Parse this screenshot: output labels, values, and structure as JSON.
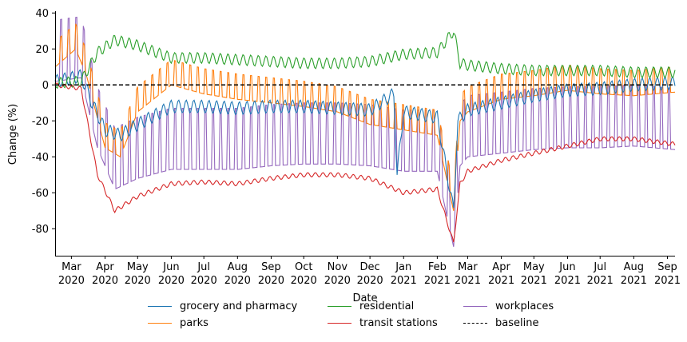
{
  "chart_data": {
    "type": "line",
    "title": "",
    "xlabel": "Date",
    "ylabel": "Change (%)",
    "ylim": [
      -95,
      41
    ],
    "yticks": [
      40,
      20,
      0,
      -20,
      -40,
      -60,
      -80
    ],
    "x_range": [
      "2020-02-15",
      "2021-09-08"
    ],
    "xticks": [
      {
        "month": "Mar",
        "year": "2020"
      },
      {
        "month": "Apr",
        "year": "2020"
      },
      {
        "month": "May",
        "year": "2020"
      },
      {
        "month": "Jun",
        "year": "2020"
      },
      {
        "month": "Jul",
        "year": "2020"
      },
      {
        "month": "Aug",
        "year": "2020"
      },
      {
        "month": "Sep",
        "year": "2020"
      },
      {
        "month": "Oct",
        "year": "2020"
      },
      {
        "month": "Nov",
        "year": "2020"
      },
      {
        "month": "Dec",
        "year": "2020"
      },
      {
        "month": "Jan",
        "year": "2021"
      },
      {
        "month": "Feb",
        "year": "2021"
      },
      {
        "month": "Mar",
        "year": "2021"
      },
      {
        "month": "Apr",
        "year": "2021"
      },
      {
        "month": "May",
        "year": "2021"
      },
      {
        "month": "Jun",
        "year": "2021"
      },
      {
        "month": "Jul",
        "year": "2021"
      },
      {
        "month": "Aug",
        "year": "2021"
      },
      {
        "month": "Sep",
        "year": "2021"
      }
    ],
    "xtick_dates": [
      "2020-03-01",
      "2020-04-01",
      "2020-05-01",
      "2020-06-01",
      "2020-07-01",
      "2020-08-01",
      "2020-09-01",
      "2020-10-01",
      "2020-11-01",
      "2020-12-01",
      "2021-01-01",
      "2021-02-01",
      "2021-03-01",
      "2021-04-01",
      "2021-05-01",
      "2021-06-01",
      "2021-07-01",
      "2021-08-01",
      "2021-09-01"
    ],
    "series": [
      {
        "name": "grocery and pharmacy",
        "color": "#1f77b4",
        "weekly_amplitude": 6,
        "points": [
          [
            "2020-02-15",
            2
          ],
          [
            "2020-03-10",
            5
          ],
          [
            "2020-03-20",
            -10
          ],
          [
            "2020-04-01",
            -25
          ],
          [
            "2020-04-15",
            -28
          ],
          [
            "2020-05-01",
            -22
          ],
          [
            "2020-06-01",
            -12
          ],
          [
            "2020-07-01",
            -12
          ],
          [
            "2020-08-01",
            -13
          ],
          [
            "2020-09-01",
            -12
          ],
          [
            "2020-10-01",
            -12
          ],
          [
            "2020-11-01",
            -13
          ],
          [
            "2020-12-01",
            -14
          ],
          [
            "2020-12-23",
            -5
          ],
          [
            "2020-12-26",
            -50
          ],
          [
            "2021-01-01",
            -15
          ],
          [
            "2021-02-01",
            -18
          ],
          [
            "2021-02-16",
            -70
          ],
          [
            "2021-02-20",
            -20
          ],
          [
            "2021-03-01",
            -14
          ],
          [
            "2021-04-01",
            -10
          ],
          [
            "2021-05-01",
            -6
          ],
          [
            "2021-06-01",
            -3
          ],
          [
            "2021-07-01",
            -2
          ],
          [
            "2021-08-01",
            0
          ],
          [
            "2021-09-08",
            1
          ]
        ]
      },
      {
        "name": "parks",
        "color": "#ff7f0e",
        "weekly_amplitude": 14,
        "points": [
          [
            "2020-02-15",
            10
          ],
          [
            "2020-03-05",
            20
          ],
          [
            "2020-03-15",
            5
          ],
          [
            "2020-04-01",
            -35
          ],
          [
            "2020-04-15",
            -40
          ],
          [
            "2020-05-01",
            -15
          ],
          [
            "2020-06-01",
            0
          ],
          [
            "2020-07-01",
            -5
          ],
          [
            "2020-08-01",
            -8
          ],
          [
            "2020-09-01",
            -10
          ],
          [
            "2020-10-01",
            -12
          ],
          [
            "2020-11-01",
            -15
          ],
          [
            "2020-12-01",
            -22
          ],
          [
            "2021-01-01",
            -25
          ],
          [
            "2021-02-01",
            -28
          ],
          [
            "2021-02-16",
            -70
          ],
          [
            "2021-02-22",
            -20
          ],
          [
            "2021-03-01",
            -15
          ],
          [
            "2021-04-01",
            -8
          ],
          [
            "2021-05-01",
            -6
          ],
          [
            "2021-06-01",
            -3
          ],
          [
            "2021-07-01",
            -5
          ],
          [
            "2021-08-01",
            -6
          ],
          [
            "2021-09-08",
            -4
          ]
        ]
      },
      {
        "name": "residential",
        "color": "#2ca02c",
        "weekly_amplitude": 5,
        "points": [
          [
            "2020-02-15",
            1
          ],
          [
            "2020-03-10",
            2
          ],
          [
            "2020-03-25",
            18
          ],
          [
            "2020-04-10",
            25
          ],
          [
            "2020-05-01",
            22
          ],
          [
            "2020-06-01",
            15
          ],
          [
            "2020-07-01",
            15
          ],
          [
            "2020-08-01",
            14
          ],
          [
            "2020-09-01",
            13
          ],
          [
            "2020-10-01",
            12
          ],
          [
            "2020-11-01",
            12
          ],
          [
            "2020-12-01",
            13
          ],
          [
            "2021-01-01",
            17
          ],
          [
            "2021-02-01",
            18
          ],
          [
            "2021-02-16",
            30
          ],
          [
            "2021-02-22",
            12
          ],
          [
            "2021-03-01",
            11
          ],
          [
            "2021-04-01",
            9
          ],
          [
            "2021-05-01",
            8
          ],
          [
            "2021-06-01",
            8
          ],
          [
            "2021-07-01",
            8
          ],
          [
            "2021-08-01",
            7
          ],
          [
            "2021-09-08",
            7
          ]
        ]
      },
      {
        "name": "transit stations",
        "color": "#d62728",
        "weekly_amplitude": 2,
        "points": [
          [
            "2020-02-15",
            0
          ],
          [
            "2020-03-10",
            -2
          ],
          [
            "2020-03-25",
            -50
          ],
          [
            "2020-04-10",
            -70
          ],
          [
            "2020-05-01",
            -62
          ],
          [
            "2020-06-01",
            -55
          ],
          [
            "2020-07-01",
            -54
          ],
          [
            "2020-08-01",
            -55
          ],
          [
            "2020-09-01",
            -52
          ],
          [
            "2020-10-01",
            -50
          ],
          [
            "2020-11-01",
            -50
          ],
          [
            "2020-12-01",
            -52
          ],
          [
            "2021-01-01",
            -60
          ],
          [
            "2021-02-01",
            -58
          ],
          [
            "2021-02-16",
            -88
          ],
          [
            "2021-02-22",
            -55
          ],
          [
            "2021-03-01",
            -48
          ],
          [
            "2021-04-01",
            -42
          ],
          [
            "2021-05-01",
            -38
          ],
          [
            "2021-06-01",
            -34
          ],
          [
            "2021-07-01",
            -30
          ],
          [
            "2021-08-01",
            -30
          ],
          [
            "2021-09-08",
            -33
          ]
        ]
      },
      {
        "name": "workplaces",
        "color": "#9467bd",
        "weekly_amplitude": 34,
        "points": [
          [
            "2020-02-15",
            2
          ],
          [
            "2020-03-10",
            4
          ],
          [
            "2020-03-25",
            -35
          ],
          [
            "2020-04-10",
            -58
          ],
          [
            "2020-05-01",
            -52
          ],
          [
            "2020-06-01",
            -47
          ],
          [
            "2020-07-01",
            -47
          ],
          [
            "2020-08-01",
            -47
          ],
          [
            "2020-09-01",
            -45
          ],
          [
            "2020-10-01",
            -44
          ],
          [
            "2020-11-01",
            -44
          ],
          [
            "2020-12-01",
            -45
          ],
          [
            "2021-01-01",
            -48
          ],
          [
            "2021-02-01",
            -48
          ],
          [
            "2021-02-16",
            -90
          ],
          [
            "2021-02-22",
            -45
          ],
          [
            "2021-03-01",
            -40
          ],
          [
            "2021-04-01",
            -38
          ],
          [
            "2021-05-01",
            -36
          ],
          [
            "2021-06-01",
            -35
          ],
          [
            "2021-07-01",
            -35
          ],
          [
            "2021-08-01",
            -34
          ],
          [
            "2021-09-08",
            -36
          ]
        ]
      },
      {
        "name": "baseline",
        "color": "#000000",
        "dashed": true,
        "points": [
          [
            "2020-02-15",
            0
          ],
          [
            "2021-09-08",
            0
          ]
        ]
      }
    ]
  }
}
